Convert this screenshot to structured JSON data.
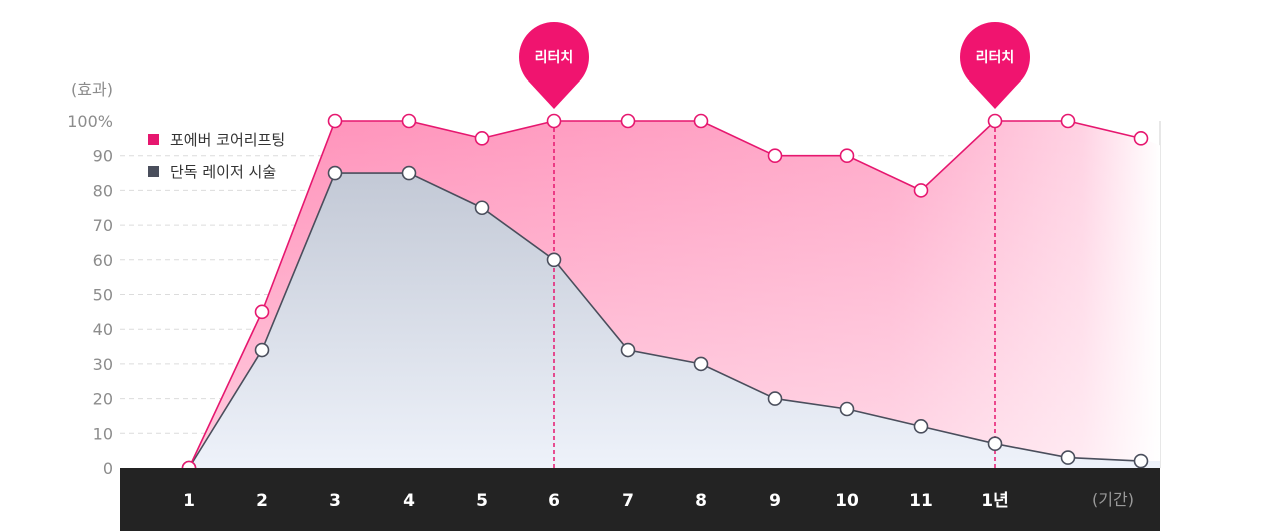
{
  "chart_data": {
    "type": "area",
    "ylabel": "(효과)",
    "xunit_label": "(기간)",
    "ylim": [
      0,
      100
    ],
    "yticks": [
      "100%",
      "90",
      "80",
      "70",
      "60",
      "50",
      "40",
      "30",
      "20",
      "10",
      "0"
    ],
    "x_labels": [
      "1",
      "2",
      "3",
      "4",
      "5",
      "6",
      "7",
      "8",
      "9",
      "10",
      "11",
      "1년",
      ""
    ],
    "series": [
      {
        "name": "포에버 코어리프팅",
        "color": "#e6176f",
        "values": [
          0,
          45,
          100,
          100,
          95,
          100,
          100,
          100,
          90,
          90,
          80,
          100,
          100,
          95
        ]
      },
      {
        "name": "단독 레이저 시술",
        "color": "#4a4e5c",
        "values": [
          0,
          34,
          85,
          85,
          75,
          60,
          34,
          30,
          20,
          17,
          12,
          7,
          3,
          2
        ]
      }
    ],
    "markers": [
      {
        "label": "리터치",
        "x_index": 5
      },
      {
        "label": "리터치",
        "x_index": 11
      }
    ],
    "grid": true,
    "legend_position": "top-left"
  }
}
